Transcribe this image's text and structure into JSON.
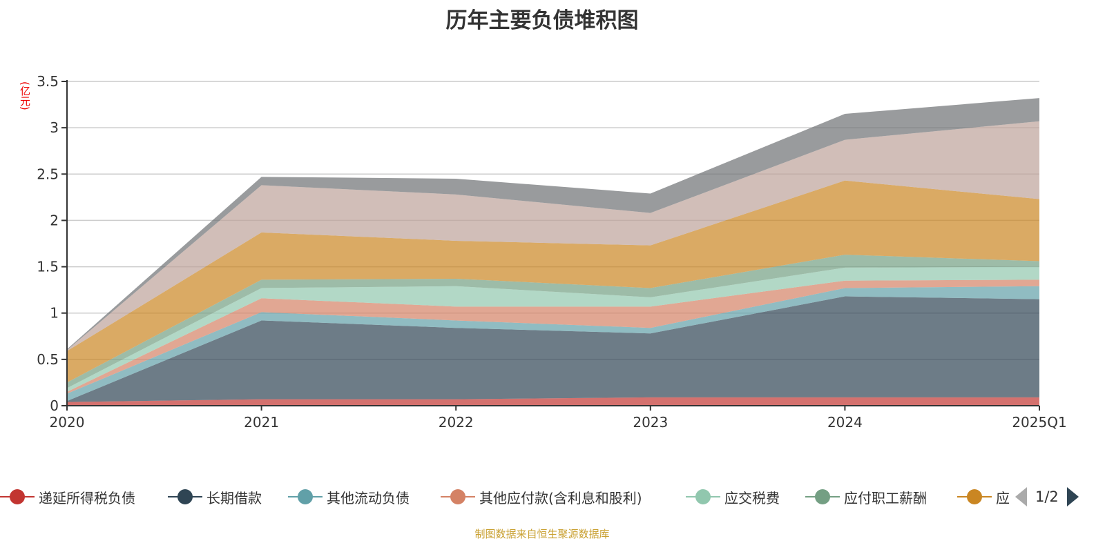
{
  "title": "历年主要负债堆积图",
  "footer": "制图数据来自恒生聚源数据库",
  "legend_pager": "1/2",
  "chart_data": {
    "type": "area",
    "stacked": true,
    "title": "历年主要负债堆积图",
    "ylabel": "(亿元)",
    "xlabel": "",
    "categories": [
      "2020",
      "2021",
      "2022",
      "2023",
      "2024",
      "2025Q1"
    ],
    "ylim": [
      0,
      3.5
    ],
    "yticks": [
      0,
      0.5,
      1,
      1.5,
      2,
      2.5,
      3,
      3.5
    ],
    "ytick_labels": [
      "0",
      "0.5",
      "1",
      "1.5",
      "2",
      "2.5",
      "3",
      "3.5"
    ],
    "grid": true,
    "legend_position": "bottom",
    "series": [
      {
        "name": "递延所得税负债",
        "color": "#c23531",
        "values": [
          0.04,
          0.07,
          0.07,
          0.09,
          0.09,
          0.09
        ]
      },
      {
        "name": "长期借款",
        "color": "#2f4554",
        "values": [
          0.01,
          0.85,
          0.77,
          0.69,
          1.09,
          1.06
        ]
      },
      {
        "name": "其他流动负债",
        "color": "#61a0a8",
        "values": [
          0.08,
          0.09,
          0.08,
          0.06,
          0.09,
          0.14
        ]
      },
      {
        "name": "其他应付款(含利息和股利)",
        "color": "#d48265",
        "values": [
          0.02,
          0.15,
          0.15,
          0.23,
          0.08,
          0.07
        ]
      },
      {
        "name": "应交税费",
        "color": "#91c7ae",
        "values": [
          0.04,
          0.11,
          0.22,
          0.1,
          0.14,
          0.14
        ]
      },
      {
        "name": "应付职工薪酬",
        "color": "#749f83",
        "values": [
          0.06,
          0.09,
          0.08,
          0.1,
          0.14,
          0.06
        ]
      },
      {
        "name": "应",
        "color": "#ca8622",
        "values": [
          0.34,
          0.51,
          0.41,
          0.46,
          0.8,
          0.67
        ]
      },
      {
        "color": "#bda29a",
        "values": [
          0.01,
          0.51,
          0.5,
          0.35,
          0.44,
          0.84
        ]
      },
      {
        "color": "#6e7074",
        "values": [
          0.01,
          0.09,
          0.17,
          0.21,
          0.28,
          0.25
        ]
      }
    ]
  }
}
